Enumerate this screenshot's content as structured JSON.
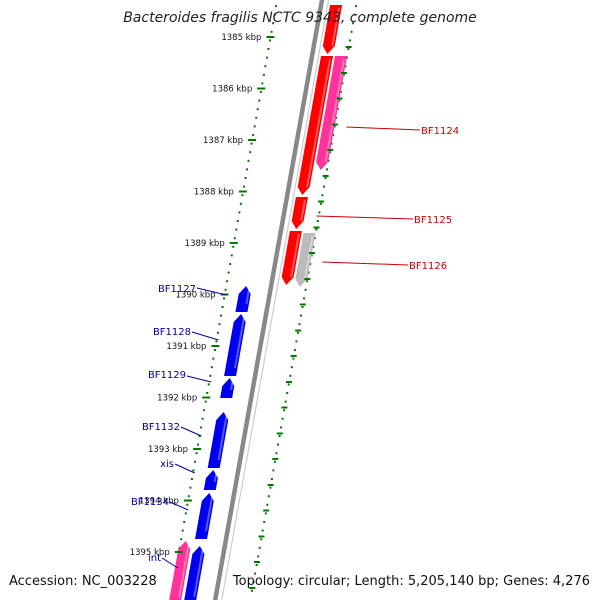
{
  "title": "Bacteroides fragilis NCTC 9343, complete genome",
  "footer": {
    "accession": "Accession: NC_003228",
    "summary": "Topology: circular; Length: 5,205,140 bp; Genes: 4,276"
  },
  "colors": {
    "forward_cds": "#ff0000",
    "forward_pseudo": "#ff3399",
    "forward_other": "#bbbbbb",
    "reverse_cds": "#0000ee",
    "reverse_pseudo": "#ff3399",
    "backbone": "#888888",
    "tick": "#007700",
    "label_forward": "#cc0000",
    "label_reverse": "#000099"
  },
  "ticks": [
    "1385 kbp",
    "1386 kbp",
    "1387 kbp",
    "1388 kbp",
    "1389 kbp",
    "1390 kbp",
    "1391 kbp",
    "1392 kbp",
    "1393 kbp",
    "1394 kbp",
    "1395 kbp"
  ],
  "forward_genes": [
    {
      "label": "",
      "color": "#ff0000"
    },
    {
      "label": "",
      "color": "#ff0000"
    },
    {
      "label": "BF1124",
      "color": "#ff3399"
    },
    {
      "label": "BF1125",
      "color": "#ff0000"
    },
    {
      "label": "",
      "color": "#ff0000"
    },
    {
      "label": "BF1126",
      "color": "#bbbbbb"
    }
  ],
  "reverse_genes": [
    {
      "label": "BF1127"
    },
    {
      "label": "BF1128"
    },
    {
      "label": "BF1129"
    },
    {
      "label": ""
    },
    {
      "label": "BF1132"
    },
    {
      "label": "xis"
    },
    {
      "label": "BF1134"
    },
    {
      "label": ""
    },
    {
      "label": "int"
    }
  ]
}
